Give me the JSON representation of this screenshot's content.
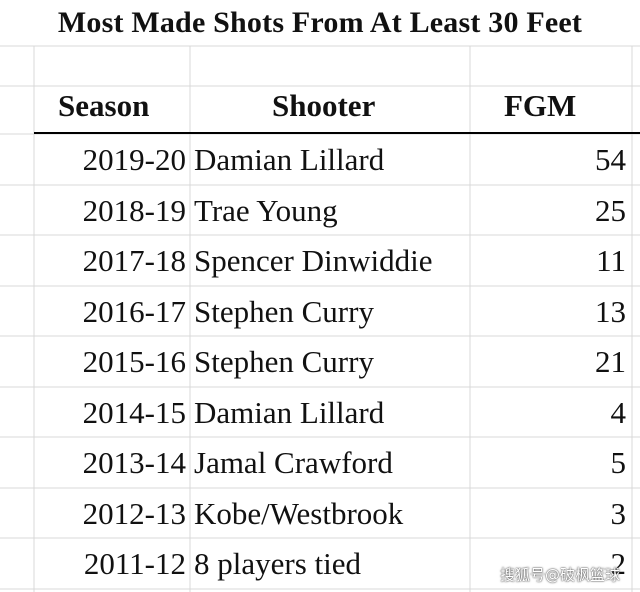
{
  "title": "Most Made Shots From At Least 30 Feet",
  "headers": {
    "season": "Season",
    "shooter": "Shooter",
    "fgm": "FGM"
  },
  "watermark": "搜狐号@破枫篮球",
  "colors": {
    "grid": "#d9d9d9",
    "header_rule": "#000000",
    "background": "#ffffff"
  },
  "chart_data": {
    "type": "table",
    "title": "Most Made Shots From At Least 30 Feet",
    "columns": [
      "Season",
      "Shooter",
      "FGM"
    ],
    "rows": [
      [
        "2019-20",
        "Damian Lillard",
        54
      ],
      [
        "2018-19",
        "Trae Young",
        25
      ],
      [
        "2017-18",
        "Spencer Dinwiddie",
        11
      ],
      [
        "2016-17",
        "Stephen Curry",
        13
      ],
      [
        "2015-16",
        "Stephen Curry",
        21
      ],
      [
        "2014-15",
        "Damian Lillard",
        4
      ],
      [
        "2013-14",
        "Jamal Crawford",
        5
      ],
      [
        "2012-13",
        "Kobe/Westbrook",
        3
      ],
      [
        "2011-12",
        "8 players tied",
        2
      ]
    ]
  }
}
